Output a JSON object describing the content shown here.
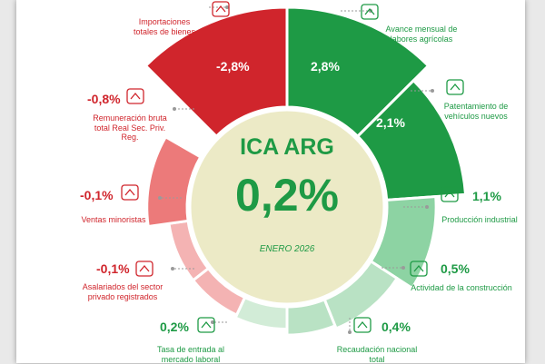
{
  "chart_data": {
    "type": "radial-bar",
    "title": "ICA ARG",
    "headline_value": "0,2%",
    "period": "ENERO 2026",
    "items": [
      {
        "label": "Importaciones totales de bienes",
        "value": -2.8,
        "display": "-2,8%",
        "icon": "box-dollar-icon"
      },
      {
        "label": "Avance mensual de labores agrícolas",
        "value": 2.8,
        "display": "2,8%",
        "icon": "field-icon"
      },
      {
        "label": "Patentamiento de vehículos nuevos",
        "value": 2.1,
        "display": "2,1%",
        "icon": "car-icon"
      },
      {
        "label": "Producción industrial",
        "value": 1.1,
        "display": "1,1%",
        "icon": "gears-icon"
      },
      {
        "label": "Actividad de la construcción",
        "value": 0.5,
        "display": "0,5%",
        "icon": "brick-wall-icon"
      },
      {
        "label": "Recaudación nacional total",
        "value": 0.4,
        "display": "0,4%",
        "icon": "money-icon"
      },
      {
        "label": "Tasa de entrada al mercado laboral",
        "value": 0.2,
        "display": "0,2%",
        "icon": "network-icon"
      },
      {
        "label": "Asalariados del sector privado registrados",
        "value": -0.1,
        "display": "-0,1%",
        "icon": "people-icon"
      },
      {
        "label": "Ventas minoristas",
        "value": -0.1,
        "display": "-0,1%",
        "icon": "hand-coins-icon"
      },
      {
        "label": "Remuneración bruta total Real Sec. Priv. Reg.",
        "value": -0.8,
        "display": "-0,8%",
        "icon": "salary-icon"
      }
    ]
  },
  "colors": {
    "negative": "#d0252c",
    "positive_dark": "#1e9a45",
    "center_fill": "#eceac6",
    "text_positive": "#1e9a45"
  }
}
